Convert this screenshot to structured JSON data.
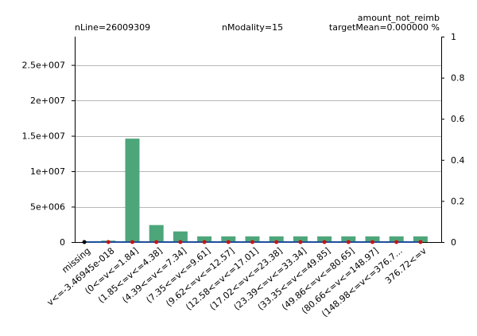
{
  "header": {
    "nline": "nLine=26009309",
    "nmodality": "nModality=15",
    "title": "amount_not_reimb",
    "target_mean": "targetMean=0.000000 %"
  },
  "chart_data": {
    "type": "bar",
    "categories": [
      "missing",
      "v<=-3.4694 5e-018",
      "(0<=v<=1.84]",
      "(1.85<=v<=4.38]",
      "(4.39<=v<=7.34]",
      "(7.35<=v<=9.61]",
      "(9.62<=v<=12.57]",
      "(12.58<=v<=17.01]",
      "(17.02<=v<=23.38]",
      "(23.39<=v<=33.34]",
      "(33.35<=v<=49.85]",
      "(49.86<=v<=80.65]",
      "(80.66<=v<=148.97]",
      "(148.98<=v<=376.7...",
      "376.72<=v"
    ],
    "category_labels": [
      "missing",
      "v<=-3.46945e-018",
      "(0<=v<=1.84]",
      "(1.85<=v<=4.38]",
      "(4.39<=v<=7.34]",
      "(7.35<=v<=9.61]",
      "(9.62<=v<=12.57]",
      "(12.58<=v<=17.01]",
      "(17.02<=v<=23.38]",
      "(23.39<=v<=33.34]",
      "(33.35<=v<=49.85]",
      "(49.86<=v<=80.65]",
      "(80.66<=v<=148.97]",
      "(148.98<=v<=376.7...",
      "376.72<=v"
    ],
    "values": [
      0,
      200000,
      14600000,
      2400000,
      1500000,
      800000,
      800000,
      800000,
      800000,
      800000,
      800000,
      800000,
      800000,
      800000,
      800000
    ],
    "target_values": [
      0,
      0,
      0,
      0,
      0,
      0,
      0,
      0,
      0,
      0,
      0,
      0,
      0,
      0,
      0
    ],
    "ylim": [
      0,
      29000000
    ],
    "yticks": [
      0,
      5000000,
      10000000,
      15000000,
      20000000,
      25000000
    ],
    "ytick_labels": [
      "0",
      "5e+006",
      "1e+007",
      "1.5e+007",
      "2e+007",
      "2.5e+007"
    ],
    "y2lim": [
      0,
      1
    ],
    "y2ticks": [
      0,
      0.2,
      0.4,
      0.6,
      0.8,
      1
    ],
    "y2tick_labels": [
      "0",
      "0.2",
      "0.4",
      "0.6",
      "0.8",
      "1"
    ],
    "grid": true,
    "colors": {
      "bar": "#4da67a",
      "target_line": "#1f4f9a",
      "target_marker": "#d01010",
      "grid": "#b8b8b8"
    }
  }
}
